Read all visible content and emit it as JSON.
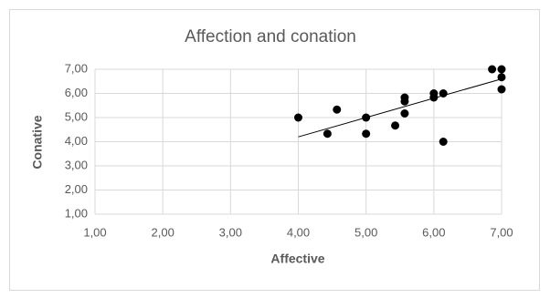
{
  "chart_data": {
    "type": "scatter",
    "title": "Affection and conation",
    "x_label": "Affective",
    "y_label": "Conative",
    "color": "#000000",
    "x": [
      4.0,
      4.43,
      4.57,
      5.0,
      5.0,
      5.43,
      5.57,
      5.57,
      5.57,
      6.0,
      6.0,
      6.14,
      6.14,
      6.86,
      7.0,
      7.0,
      7.0
    ],
    "values": [
      5.0,
      4.33,
      5.33,
      5.0,
      4.33,
      4.67,
      5.83,
      5.67,
      5.17,
      6.0,
      5.83,
      6.0,
      4.0,
      7.0,
      7.0,
      6.67,
      6.17
    ],
    "trendline": {
      "x": [
        4.0,
        7.0
      ],
      "values": [
        4.2,
        6.6
      ],
      "color": "#000000"
    },
    "xlim": [
      1,
      7
    ],
    "ylim": [
      1,
      7
    ],
    "xticks": [
      {
        "value": 1,
        "label": "1,00"
      },
      {
        "value": 2,
        "label": "2,00"
      },
      {
        "value": 3,
        "label": "3,00"
      },
      {
        "value": 4,
        "label": "4,00"
      },
      {
        "value": 5,
        "label": "5,00"
      },
      {
        "value": 6,
        "label": "6,00"
      },
      {
        "value": 7,
        "label": "7,00"
      }
    ],
    "yticks": [
      {
        "value": 1,
        "label": "1,00"
      },
      {
        "value": 2,
        "label": "2,00"
      },
      {
        "value": 3,
        "label": "3,00"
      },
      {
        "value": 4,
        "label": "4,00"
      },
      {
        "value": 5,
        "label": "5,00"
      },
      {
        "value": 6,
        "label": "6,00"
      },
      {
        "value": 7,
        "label": "7,00"
      }
    ],
    "grid": true
  }
}
